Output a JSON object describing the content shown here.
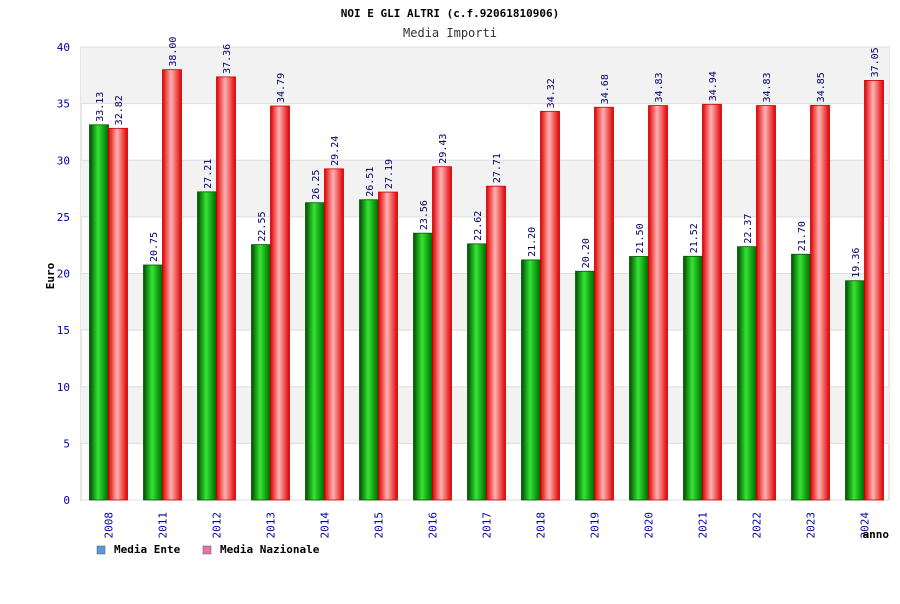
{
  "chart_data": {
    "type": "bar",
    "title": "NOI E GLI ALTRI (c.f.92061810906)",
    "subtitle": "Media Importi",
    "ylabel": "Euro",
    "xlabel": "anno",
    "ylim": [
      0,
      40
    ],
    "yticks": [
      0,
      5,
      10,
      15,
      20,
      25,
      30,
      35,
      40
    ],
    "categories": [
      "2008",
      "2011",
      "2012",
      "2013",
      "2014",
      "2015",
      "2016",
      "2017",
      "2018",
      "2019",
      "2020",
      "2021",
      "2022",
      "2023",
      "2024"
    ],
    "series": [
      {
        "name": "Media Ente",
        "values": [
          33.13,
          20.75,
          27.21,
          22.55,
          26.25,
          26.51,
          23.56,
          22.62,
          21.2,
          20.2,
          21.5,
          21.52,
          22.37,
          21.7,
          19.36
        ],
        "labels": [
          "33.13",
          "20.75",
          "27.21",
          "22.55",
          "26.25",
          "26.51",
          "23.56",
          "22.62",
          "21.20",
          "20.20",
          "21.50",
          "21.52",
          "22.37",
          "21.70",
          "19.36"
        ]
      },
      {
        "name": "Media Nazionale",
        "values": [
          32.82,
          38.0,
          37.36,
          34.79,
          29.24,
          27.19,
          29.43,
          27.71,
          34.32,
          34.68,
          34.83,
          34.94,
          34.83,
          34.85,
          37.05
        ],
        "labels": [
          "32.82",
          "38.00",
          "37.36",
          "34.79",
          "29.24",
          "27.19",
          "29.43",
          "27.71",
          "34.32",
          "34.68",
          "34.83",
          "34.94",
          "34.83",
          "34.85",
          "37.05"
        ]
      }
    ],
    "legend": [
      {
        "name": "Media Ente",
        "color": "#5b9bd5"
      },
      {
        "name": "Media Nazionale",
        "color": "#e377a9"
      }
    ],
    "legend_position": "bottom-left",
    "grid": true
  },
  "colors": {
    "ente_dark": "#006400",
    "ente_light": "#33dd33",
    "naz_dark": "#dd0000",
    "naz_light": "#ff9999",
    "band": "#f2f2f2",
    "axis": "#cccccc"
  }
}
